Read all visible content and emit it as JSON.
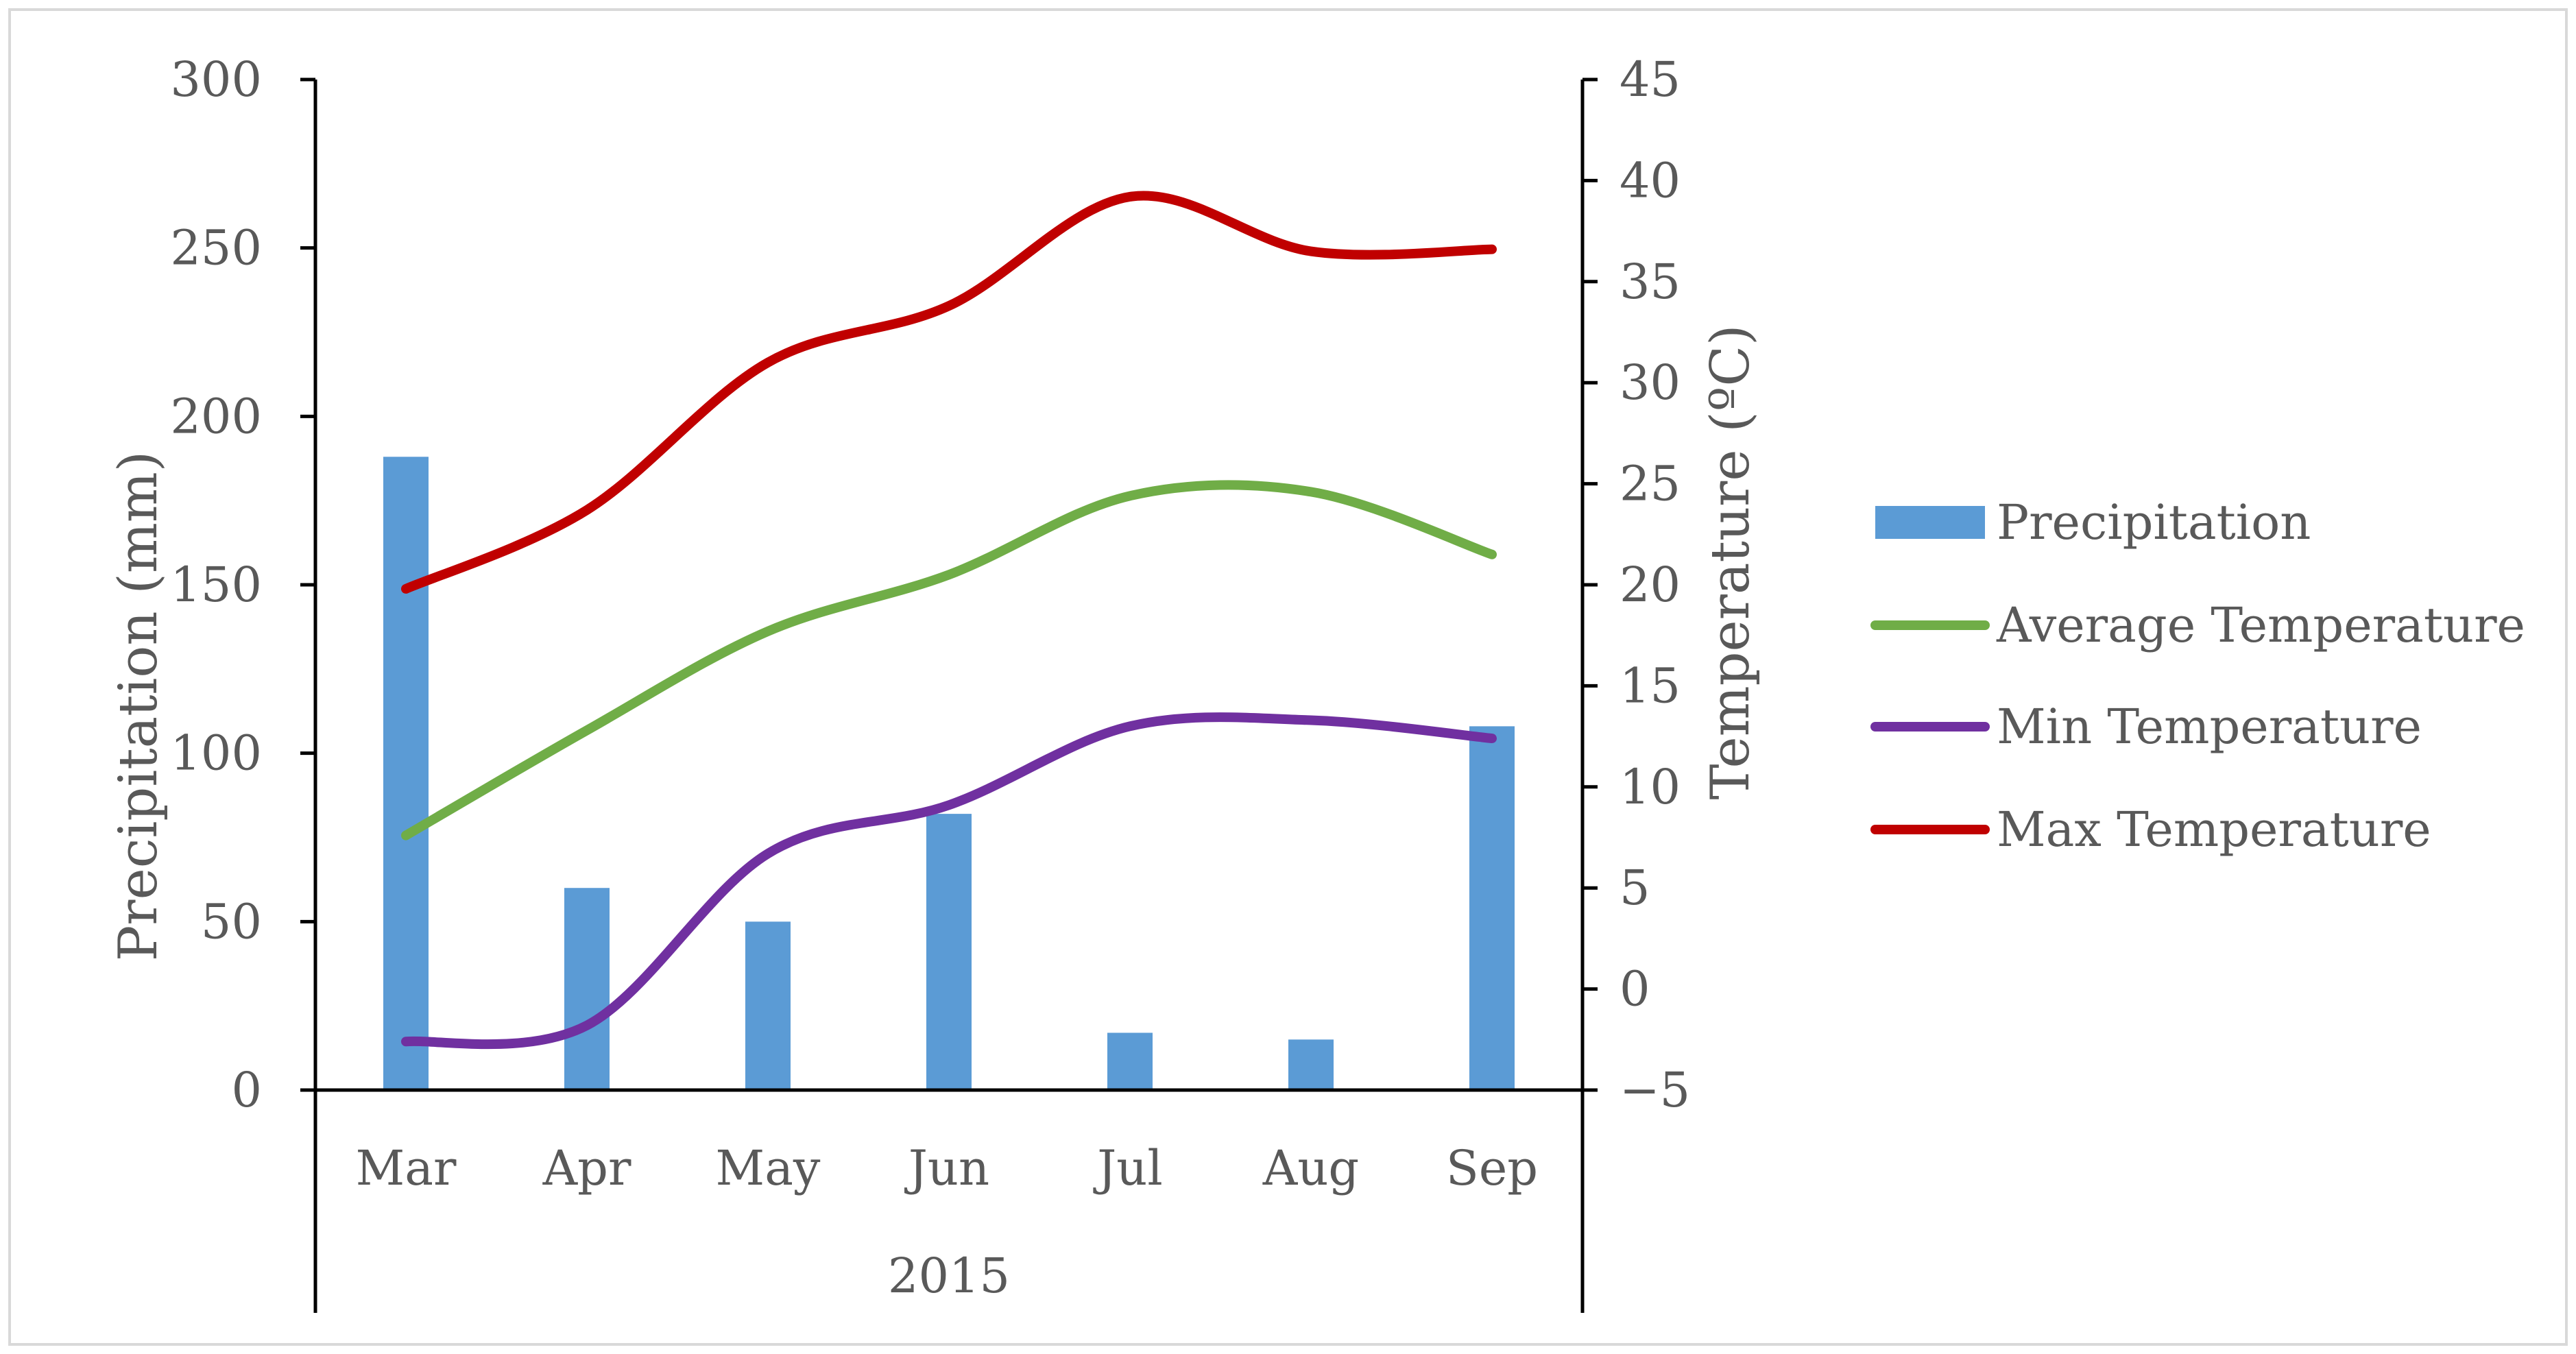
{
  "chart_data": {
    "type": "bar+line",
    "categories": [
      "Mar",
      "Apr",
      "May",
      "Jun",
      "Jul",
      "Aug",
      "Sep"
    ],
    "group_label": "2015",
    "y_left": {
      "label": "Precipitation (mm)",
      "ylim": [
        0,
        300
      ],
      "ticks": [
        0,
        50,
        100,
        150,
        200,
        250,
        300
      ],
      "tick_labels": [
        "0",
        "50",
        "100",
        "150",
        "200",
        "250",
        "300"
      ]
    },
    "y_right": {
      "label": "Temperature (ºC)",
      "ylim": [
        -5,
        45
      ],
      "ticks": [
        -5,
        0,
        5,
        10,
        15,
        20,
        25,
        30,
        35,
        40,
        45
      ],
      "tick_labels": [
        "−5",
        "0",
        "5",
        "10",
        "15",
        "20",
        "25",
        "30",
        "35",
        "40",
        "45"
      ]
    },
    "series": [
      {
        "name": "Precipitation",
        "kind": "bar",
        "axis": "left",
        "color": "#5b9bd5",
        "values": [
          188,
          60,
          50,
          82,
          17,
          15,
          108
        ]
      },
      {
        "name": "Average Temperature",
        "kind": "line",
        "axis": "right",
        "color": "#70ad47",
        "values": [
          7.6,
          12.8,
          17.7,
          20.5,
          24.4,
          24.6,
          21.5
        ]
      },
      {
        "name": "Min Temperature",
        "kind": "line",
        "axis": "right",
        "color": "#7030a0",
        "values": [
          -2.6,
          -1.8,
          6.7,
          9.1,
          13.0,
          13.3,
          12.4
        ]
      },
      {
        "name": "Max Temperature",
        "kind": "line",
        "axis": "right",
        "color": "#c00000",
        "values": [
          19.8,
          23.7,
          31.0,
          33.8,
          39.2,
          36.5,
          36.6
        ]
      }
    ],
    "legend_position": "right"
  }
}
